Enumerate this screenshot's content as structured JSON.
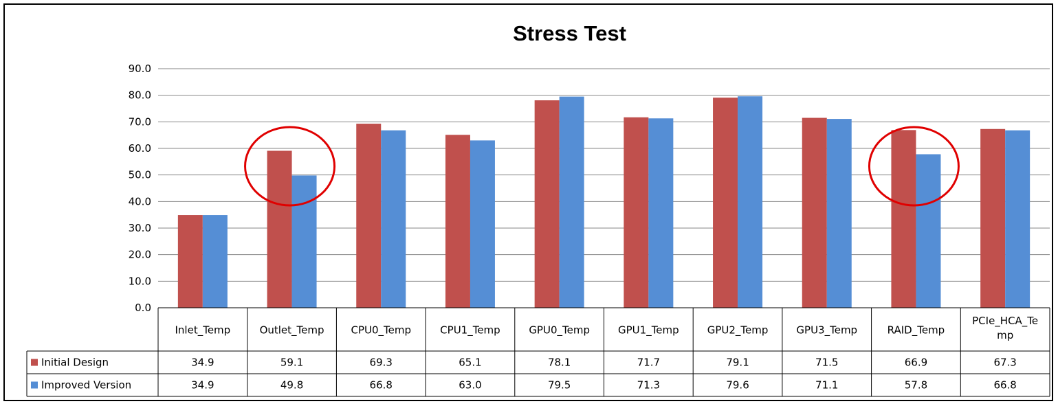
{
  "chart_data": {
    "type": "bar",
    "title": "Stress Test",
    "categories": [
      "Inlet_Temp",
      "Outlet_Temp",
      "CPU0_Temp",
      "CPU1_Temp",
      "GPU0_Temp",
      "GPU1_Temp",
      "GPU2_Temp",
      "GPU3_Temp",
      "RAID_Temp",
      "PCIe_HCA_Temp"
    ],
    "category_display_lines": [
      [
        "Inlet_Temp"
      ],
      [
        "Outlet_Temp"
      ],
      [
        "CPU0_Temp"
      ],
      [
        "CPU1_Temp"
      ],
      [
        "GPU0_Temp"
      ],
      [
        "GPU1_Temp"
      ],
      [
        "GPU2_Temp"
      ],
      [
        "GPU3_Temp"
      ],
      [
        "RAID_Temp"
      ],
      [
        "PCIe_HCA_Te",
        "mp"
      ]
    ],
    "series": [
      {
        "name": "Initial Design",
        "color": "#c0504d",
        "values": [
          34.9,
          59.1,
          69.3,
          65.1,
          78.1,
          71.7,
          79.1,
          71.5,
          66.9,
          67.3
        ],
        "labels": [
          "34.9",
          "59.1",
          "69.3",
          "65.1",
          "78.1",
          "71.7",
          "79.1",
          "71.5",
          "66.9",
          "67.3"
        ]
      },
      {
        "name": "Improved Version",
        "color": "#558ed5",
        "values": [
          34.9,
          49.8,
          66.8,
          63.0,
          79.5,
          71.3,
          79.6,
          71.1,
          57.8,
          66.8
        ],
        "labels": [
          "34.9",
          "49.8",
          "66.8",
          "63.0",
          "79.5",
          "71.3",
          "79.6",
          "71.1",
          "57.8",
          "66.8"
        ]
      }
    ],
    "ylim": [
      0,
      90
    ],
    "yticks": [
      "0.0",
      "10.0",
      "20.0",
      "30.0",
      "40.0",
      "50.0",
      "60.0",
      "70.0",
      "80.0",
      "90.0"
    ],
    "grid": true,
    "legend": "data-table",
    "annotations": [
      {
        "type": "circle",
        "color": "#e00000",
        "category": "Outlet_Temp"
      },
      {
        "type": "circle",
        "color": "#e00000",
        "category": "RAID_Temp"
      }
    ]
  }
}
